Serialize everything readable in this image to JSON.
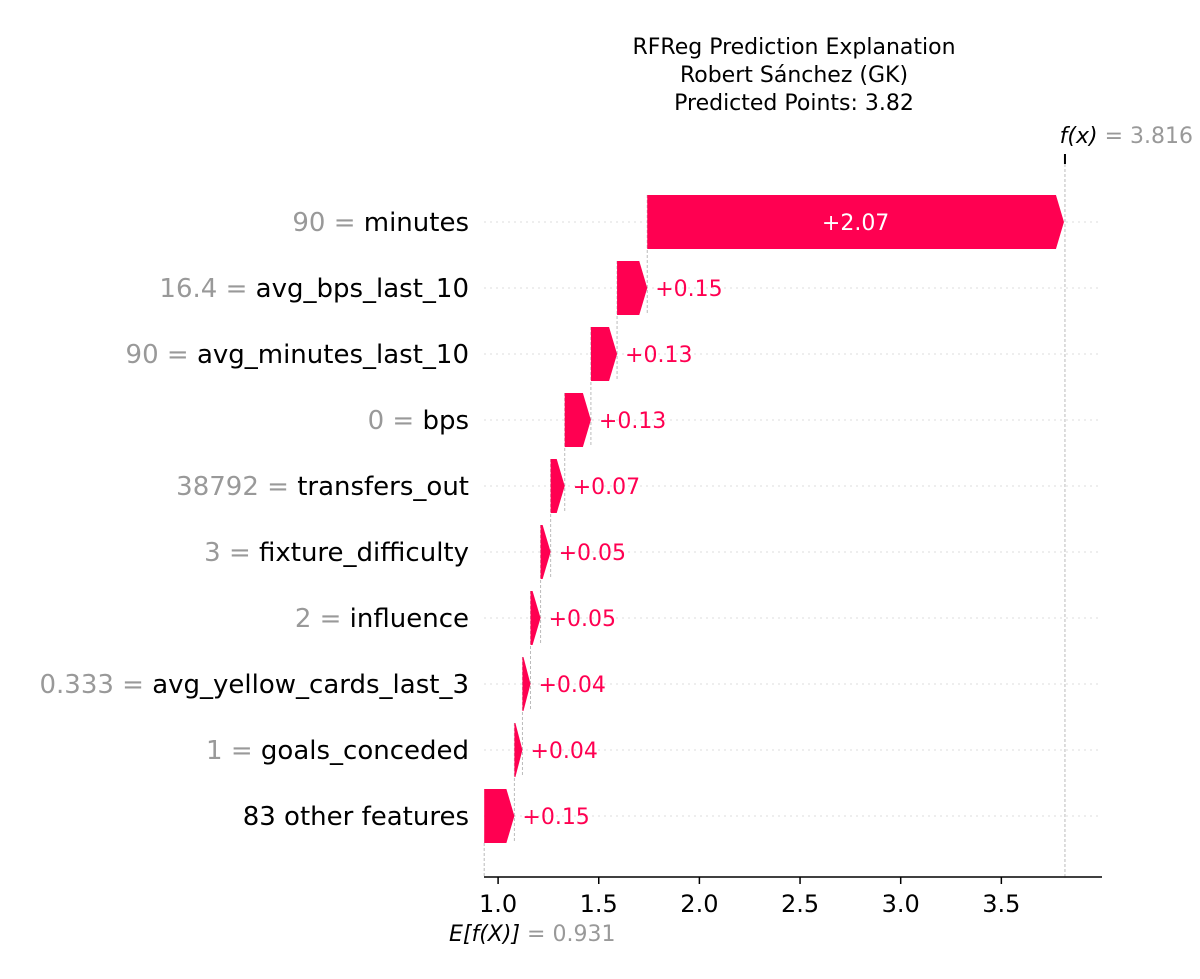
{
  "chart_data": {
    "type": "waterfall",
    "title_lines": [
      "RFReg Prediction Explanation",
      "Robert Sánchez (GK)",
      "Predicted Points: 3.82"
    ],
    "base_value": 0.931,
    "base_label": "0.931",
    "output_value": 3.816,
    "output_label": "3.816",
    "fx_prefix": "f(x)",
    "efx_prefix": "E[f(X)]",
    "equals": "=",
    "positive_color": "#ff0051",
    "xlim": [
      0.93,
      4.0
    ],
    "xticks": [
      {
        "value": 1.0,
        "label": "1.0"
      },
      {
        "value": 1.5,
        "label": "1.5"
      },
      {
        "value": 2.0,
        "label": "2.0"
      },
      {
        "value": 2.5,
        "label": "2.5"
      },
      {
        "value": 3.0,
        "label": "3.0"
      },
      {
        "value": 3.5,
        "label": "3.5"
      }
    ],
    "features": [
      {
        "value": "90",
        "name": "minutes",
        "contribution": 2.07,
        "label": "+2.07",
        "label_inside": true
      },
      {
        "value": "16.4",
        "name": "avg_bps_last_10",
        "contribution": 0.15,
        "label": "+0.15",
        "label_inside": false
      },
      {
        "value": "90",
        "name": "avg_minutes_last_10",
        "contribution": 0.13,
        "label": "+0.13",
        "label_inside": false
      },
      {
        "value": "0",
        "name": "bps",
        "contribution": 0.13,
        "label": "+0.13",
        "label_inside": false
      },
      {
        "value": "38792",
        "name": "transfers_out",
        "contribution": 0.07,
        "label": "+0.07",
        "label_inside": false
      },
      {
        "value": "3",
        "name": "fixture_difficulty",
        "contribution": 0.05,
        "label": "+0.05",
        "label_inside": false
      },
      {
        "value": "2",
        "name": "influence",
        "contribution": 0.05,
        "label": "+0.05",
        "label_inside": false
      },
      {
        "value": "0.333",
        "name": "avg_yellow_cards_last_3",
        "contribution": 0.04,
        "label": "+0.04",
        "label_inside": false
      },
      {
        "value": "1",
        "name": "goals_conceded",
        "contribution": 0.04,
        "label": "+0.04",
        "label_inside": false
      },
      {
        "value": "",
        "name": "83 other features",
        "contribution": 0.15,
        "label": "+0.15",
        "label_inside": false
      }
    ]
  }
}
